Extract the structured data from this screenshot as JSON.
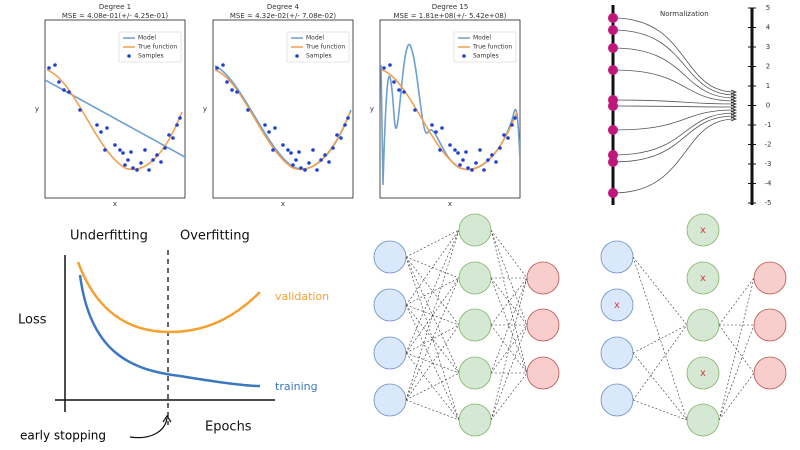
{
  "polynomial_fits": {
    "panels": [
      {
        "title": "Degree 1",
        "subtitle": "MSE = 4.08e-01(+/- 4.25e-01)",
        "x_label": "x",
        "y_label": "y"
      },
      {
        "title": "Degree 4",
        "subtitle": "MSE = 4.32e-02(+/- 7.08e-02)",
        "x_label": "x",
        "y_label": "y"
      },
      {
        "title": "Degree 15",
        "subtitle": "MSE = 1.81e+08(+/- 5.42e+08)",
        "x_label": "x",
        "y_label": "y"
      }
    ],
    "legend": [
      "Model",
      "True function",
      "Samples"
    ]
  },
  "normalization": {
    "title": "Normalization",
    "ticks": [
      "5",
      "4",
      "3",
      "2",
      "1",
      "0",
      "-1",
      "-2",
      "-3",
      "-4",
      "-5"
    ]
  },
  "early_stopping": {
    "left_label": "Underfitting",
    "right_label": "Overfitting",
    "y_label": "Loss",
    "x_label": "Epochs",
    "validation_label": "validation",
    "training_label": "training",
    "marker_label": "early stopping"
  },
  "dropout": {
    "dropped_label": "x"
  }
}
